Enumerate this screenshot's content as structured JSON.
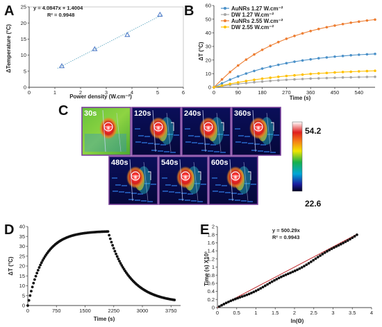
{
  "panels": {
    "a": "A",
    "b": "B",
    "c": "C",
    "d": "D",
    "e": "E"
  },
  "chart_data": [
    {
      "type": "scatter",
      "panel": "A",
      "xlabel": "Power density (W.cm⁻²)",
      "ylabel": "ΔTemperature (°C)",
      "xlim": [
        0,
        6
      ],
      "ylim": [
        0,
        25
      ],
      "xticks": [
        "0",
        "1",
        "2",
        "3",
        "4",
        "5",
        "6"
      ],
      "yticks": [
        "0",
        "5",
        "10",
        "15",
        "20",
        "25"
      ],
      "points": [
        {
          "x": 1.27,
          "y": 6.6
        },
        {
          "x": 2.55,
          "y": 11.9
        },
        {
          "x": 3.82,
          "y": 16.3
        },
        {
          "x": 5.09,
          "y": 22.6
        }
      ],
      "fit": {
        "slope": 4.0847,
        "intercept": 1.4004
      },
      "equation": "y = 4.0847x + 1.4004",
      "r2": "R² = 0.9948",
      "colors": {
        "marker": "#4472c4",
        "fit": "#5fa8c2"
      }
    },
    {
      "type": "line",
      "panel": "B",
      "xlabel": "Time (s)",
      "ylabel": "ΔT (°C)",
      "xlim": [
        0,
        600
      ],
      "ylim": [
        0,
        60
      ],
      "xticks": [
        "0",
        "90",
        "180",
        "270",
        "360",
        "450",
        "540"
      ],
      "xtick_values": [
        0,
        90,
        180,
        270,
        360,
        450,
        540
      ],
      "yticks": [
        "0",
        "10",
        "20",
        "30",
        "40",
        "50",
        "60"
      ],
      "legend_position": "top-left",
      "x": [
        0,
        30,
        60,
        90,
        120,
        150,
        180,
        210,
        240,
        270,
        300,
        330,
        360,
        390,
        420,
        450,
        480,
        510,
        540,
        570,
        600
      ],
      "series": [
        {
          "name": "AuNRs 1.27 W.cm⁻²",
          "color": "#4a90c8",
          "values": [
            0,
            2.9,
            5.6,
            8.0,
            10.1,
            12.0,
            13.7,
            15.2,
            16.5,
            17.7,
            18.8,
            19.7,
            20.5,
            21.3,
            21.9,
            22.5,
            23.0,
            23.5,
            23.9,
            24.2,
            24.5
          ]
        },
        {
          "name": "DW 1.27 W.cm⁻²",
          "color": "#a6a6a6",
          "values": [
            0,
            0.9,
            1.7,
            2.5,
            3.1,
            3.7,
            4.2,
            4.7,
            5.1,
            5.5,
            5.8,
            6.1,
            6.4,
            6.6,
            6.8,
            7.0,
            7.2,
            7.3,
            7.5,
            7.6,
            7.7
          ]
        },
        {
          "name": "AuNRs 2.55 W.cm⁻²",
          "color": "#ed7d31",
          "values": [
            0,
            5.8,
            11.2,
            16.0,
            20.3,
            24.1,
            27.5,
            30.5,
            33.2,
            35.6,
            37.7,
            39.6,
            41.3,
            42.8,
            44.1,
            45.3,
            46.4,
            47.4,
            48.2,
            49.0,
            49.7
          ]
        },
        {
          "name": "DW  2.55 W.cm⁻²",
          "color": "#ffc000",
          "values": [
            0,
            1.3,
            2.5,
            3.6,
            4.6,
            5.5,
            6.3,
            7.0,
            7.7,
            8.3,
            8.8,
            9.3,
            9.8,
            10.2,
            10.5,
            10.9,
            11.2,
            11.4,
            11.7,
            11.9,
            12.1
          ]
        }
      ]
    },
    {
      "type": "heatmap",
      "panel": "C",
      "frames": [
        "30s",
        "120s",
        "240s",
        "360s",
        "480s",
        "540s",
        "600s"
      ],
      "colorbar": {
        "max": "54.2",
        "min": "22.6"
      }
    },
    {
      "type": "scatter",
      "panel": "D",
      "xlabel": "Time (s)",
      "ylabel": "ΔT (°C)",
      "xlim": [
        0,
        4000
      ],
      "ylim": [
        0,
        40
      ],
      "xticks": [
        "0",
        "750",
        "1500",
        "2250",
        "3000",
        "3750"
      ],
      "xtick_values": [
        0,
        750,
        1500,
        2250,
        3000,
        3750
      ],
      "yticks": [
        "0",
        "5",
        "10",
        "15",
        "20",
        "25",
        "30",
        "35",
        "40"
      ],
      "heating": {
        "t_start": 0,
        "t_end": 2100,
        "dt_max": 37.5
      },
      "cooling": {
        "t_start": 2100,
        "t_end": 3840,
        "dt_end": 1.2
      },
      "color": "#111111"
    },
    {
      "type": "scatter",
      "panel": "E",
      "xlabel": "ln(Θ)",
      "ylabel": "Time (s) X10³",
      "xlim": [
        0,
        4
      ],
      "ylim": [
        0,
        2
      ],
      "xticks": [
        "0",
        "0.5",
        "1",
        "1.5",
        "2",
        "2.5",
        "3",
        "3.5",
        "4"
      ],
      "yticks": [
        "0",
        "0.2",
        "0.4",
        "0.6",
        "0.8",
        "1",
        "1.2",
        "1.4",
        "1.6",
        "1.8",
        "2"
      ],
      "x_end": 3.62,
      "fit": {
        "slope": 0.50029,
        "intercept": 0
      },
      "equation": "y = 500.29x",
      "r2": "R² = 0.9943",
      "colors": {
        "marker": "#111111",
        "fit": "#c0282c"
      }
    }
  ]
}
